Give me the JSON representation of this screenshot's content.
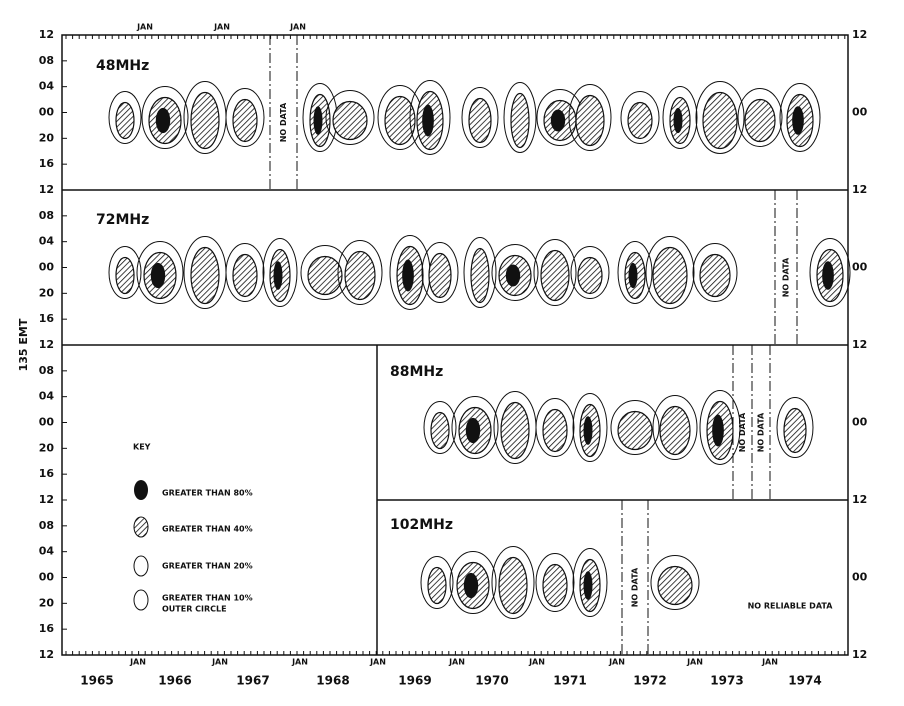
{
  "y_axis_title": "135 EMT",
  "panels": [
    {
      "label": "48MHz"
    },
    {
      "label": "72MHz"
    },
    {
      "label": "88MHz"
    },
    {
      "label": "102MHz"
    }
  ],
  "left_tick_labels": [
    "12",
    "08",
    "04",
    "00",
    "20",
    "16"
  ],
  "left_end_label": "12",
  "right_tick_labels": [
    "12",
    "00"
  ],
  "right_end_label": "12",
  "top_month_labels": [
    "JAN",
    "JAN",
    "JAN"
  ],
  "bottom_month_labels": [
    "JAN",
    "JAN",
    "JAN",
    "JAN",
    "JAN",
    "JAN",
    "JAN",
    "JAN",
    "JAN"
  ],
  "years": [
    "1965",
    "1966",
    "1967",
    "1968",
    "1969",
    "1970",
    "1971",
    "1972",
    "1973",
    "1974"
  ],
  "no_data_label": "NO DATA",
  "no_reliable_data_label": "NO RELIABLE DATA",
  "key": {
    "title": "KEY",
    "entries": [
      "GREATER THAN 80%",
      "GREATER THAN 40%",
      "GREATER THAN 20%",
      "GREATER THAN 10%"
    ],
    "note": "OUTER CIRCLE"
  }
}
